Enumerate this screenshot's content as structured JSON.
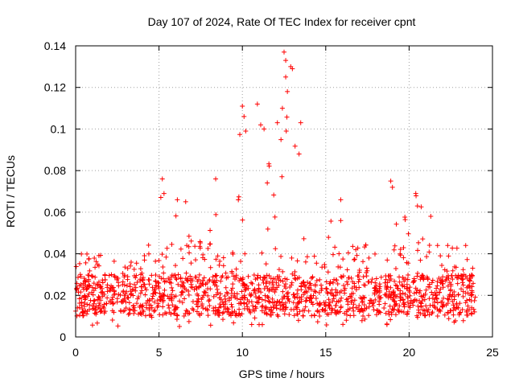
{
  "chart_data": {
    "type": "scatter",
    "title": "Day 107 of 2024, Rate Of TEC Index for receiver cpnt",
    "xlabel": "GPS time / hours",
    "ylabel": "ROTI / TECUs",
    "xlim": [
      0,
      25
    ],
    "ylim": [
      0,
      0.14
    ],
    "x_ticks": [
      0,
      5,
      10,
      15,
      20,
      25
    ],
    "x_tick_labels": [
      "0",
      "5",
      "10",
      "15",
      "20",
      "25"
    ],
    "y_ticks": [
      0,
      0.02,
      0.04,
      0.06,
      0.08,
      0.1,
      0.12,
      0.14
    ],
    "y_tick_labels": [
      "0",
      "0.02",
      "0.04",
      "0.06",
      "0.08",
      "0.1",
      "0.12",
      "0.14"
    ],
    "grid": true,
    "marker": "+",
    "color": "#ff0000",
    "series": [
      {
        "name": "ROTI",
        "background_band": {
          "x_start": 0.0,
          "x_end": 24.0,
          "typical_low": 0.01,
          "typical_high": 0.03,
          "n_points": 1500
        },
        "envelope": [
          {
            "x": 0.0,
            "max": 0.039
          },
          {
            "x": 1.0,
            "max": 0.043
          },
          {
            "x": 2.0,
            "max": 0.037
          },
          {
            "x": 3.0,
            "max": 0.036
          },
          {
            "x": 4.0,
            "max": 0.038
          },
          {
            "x": 5.0,
            "max": 0.06
          },
          {
            "x": 5.2,
            "max": 0.076
          },
          {
            "x": 6.0,
            "max": 0.066
          },
          {
            "x": 6.5,
            "max": 0.065
          },
          {
            "x": 7.0,
            "max": 0.045
          },
          {
            "x": 8.0,
            "max": 0.047
          },
          {
            "x": 8.4,
            "max": 0.076
          },
          {
            "x": 9.0,
            "max": 0.07
          },
          {
            "x": 9.5,
            "max": 0.08
          },
          {
            "x": 10.0,
            "max": 0.112
          },
          {
            "x": 10.5,
            "max": 0.099
          },
          {
            "x": 11.0,
            "max": 0.112
          },
          {
            "x": 11.5,
            "max": 0.085
          },
          {
            "x": 12.0,
            "max": 0.1
          },
          {
            "x": 12.5,
            "max": 0.137
          },
          {
            "x": 13.0,
            "max": 0.13
          },
          {
            "x": 13.5,
            "max": 0.103
          },
          {
            "x": 14.0,
            "max": 0.06
          },
          {
            "x": 15.0,
            "max": 0.051
          },
          {
            "x": 15.9,
            "max": 0.066
          },
          {
            "x": 16.5,
            "max": 0.05
          },
          {
            "x": 17.5,
            "max": 0.045
          },
          {
            "x": 18.5,
            "max": 0.048
          },
          {
            "x": 19.0,
            "max": 0.075
          },
          {
            "x": 19.5,
            "max": 0.062
          },
          {
            "x": 20.5,
            "max": 0.069
          },
          {
            "x": 21.5,
            "max": 0.058
          },
          {
            "x": 22.5,
            "max": 0.047
          },
          {
            "x": 23.5,
            "max": 0.045
          },
          {
            "x": 24.0,
            "max": 0.035
          }
        ],
        "notable_points": [
          {
            "x": 5.2,
            "y": 0.076
          },
          {
            "x": 5.3,
            "y": 0.069
          },
          {
            "x": 6.1,
            "y": 0.066
          },
          {
            "x": 6.6,
            "y": 0.065
          },
          {
            "x": 8.4,
            "y": 0.076
          },
          {
            "x": 10.0,
            "y": 0.111
          },
          {
            "x": 10.1,
            "y": 0.106
          },
          {
            "x": 10.2,
            "y": 0.099
          },
          {
            "x": 10.9,
            "y": 0.112
          },
          {
            "x": 11.1,
            "y": 0.102
          },
          {
            "x": 11.3,
            "y": 0.1
          },
          {
            "x": 12.1,
            "y": 0.103
          },
          {
            "x": 12.4,
            "y": 0.11
          },
          {
            "x": 12.5,
            "y": 0.137
          },
          {
            "x": 12.6,
            "y": 0.133
          },
          {
            "x": 12.6,
            "y": 0.125
          },
          {
            "x": 12.7,
            "y": 0.118
          },
          {
            "x": 12.9,
            "y": 0.13
          },
          {
            "x": 13.0,
            "y": 0.129
          },
          {
            "x": 13.5,
            "y": 0.103
          },
          {
            "x": 13.4,
            "y": 0.088
          },
          {
            "x": 15.9,
            "y": 0.066
          },
          {
            "x": 15.9,
            "y": 0.056
          },
          {
            "x": 18.9,
            "y": 0.075
          },
          {
            "x": 19.0,
            "y": 0.072
          },
          {
            "x": 20.4,
            "y": 0.069
          },
          {
            "x": 20.5,
            "y": 0.063
          },
          {
            "x": 21.3,
            "y": 0.058
          }
        ]
      }
    ]
  }
}
